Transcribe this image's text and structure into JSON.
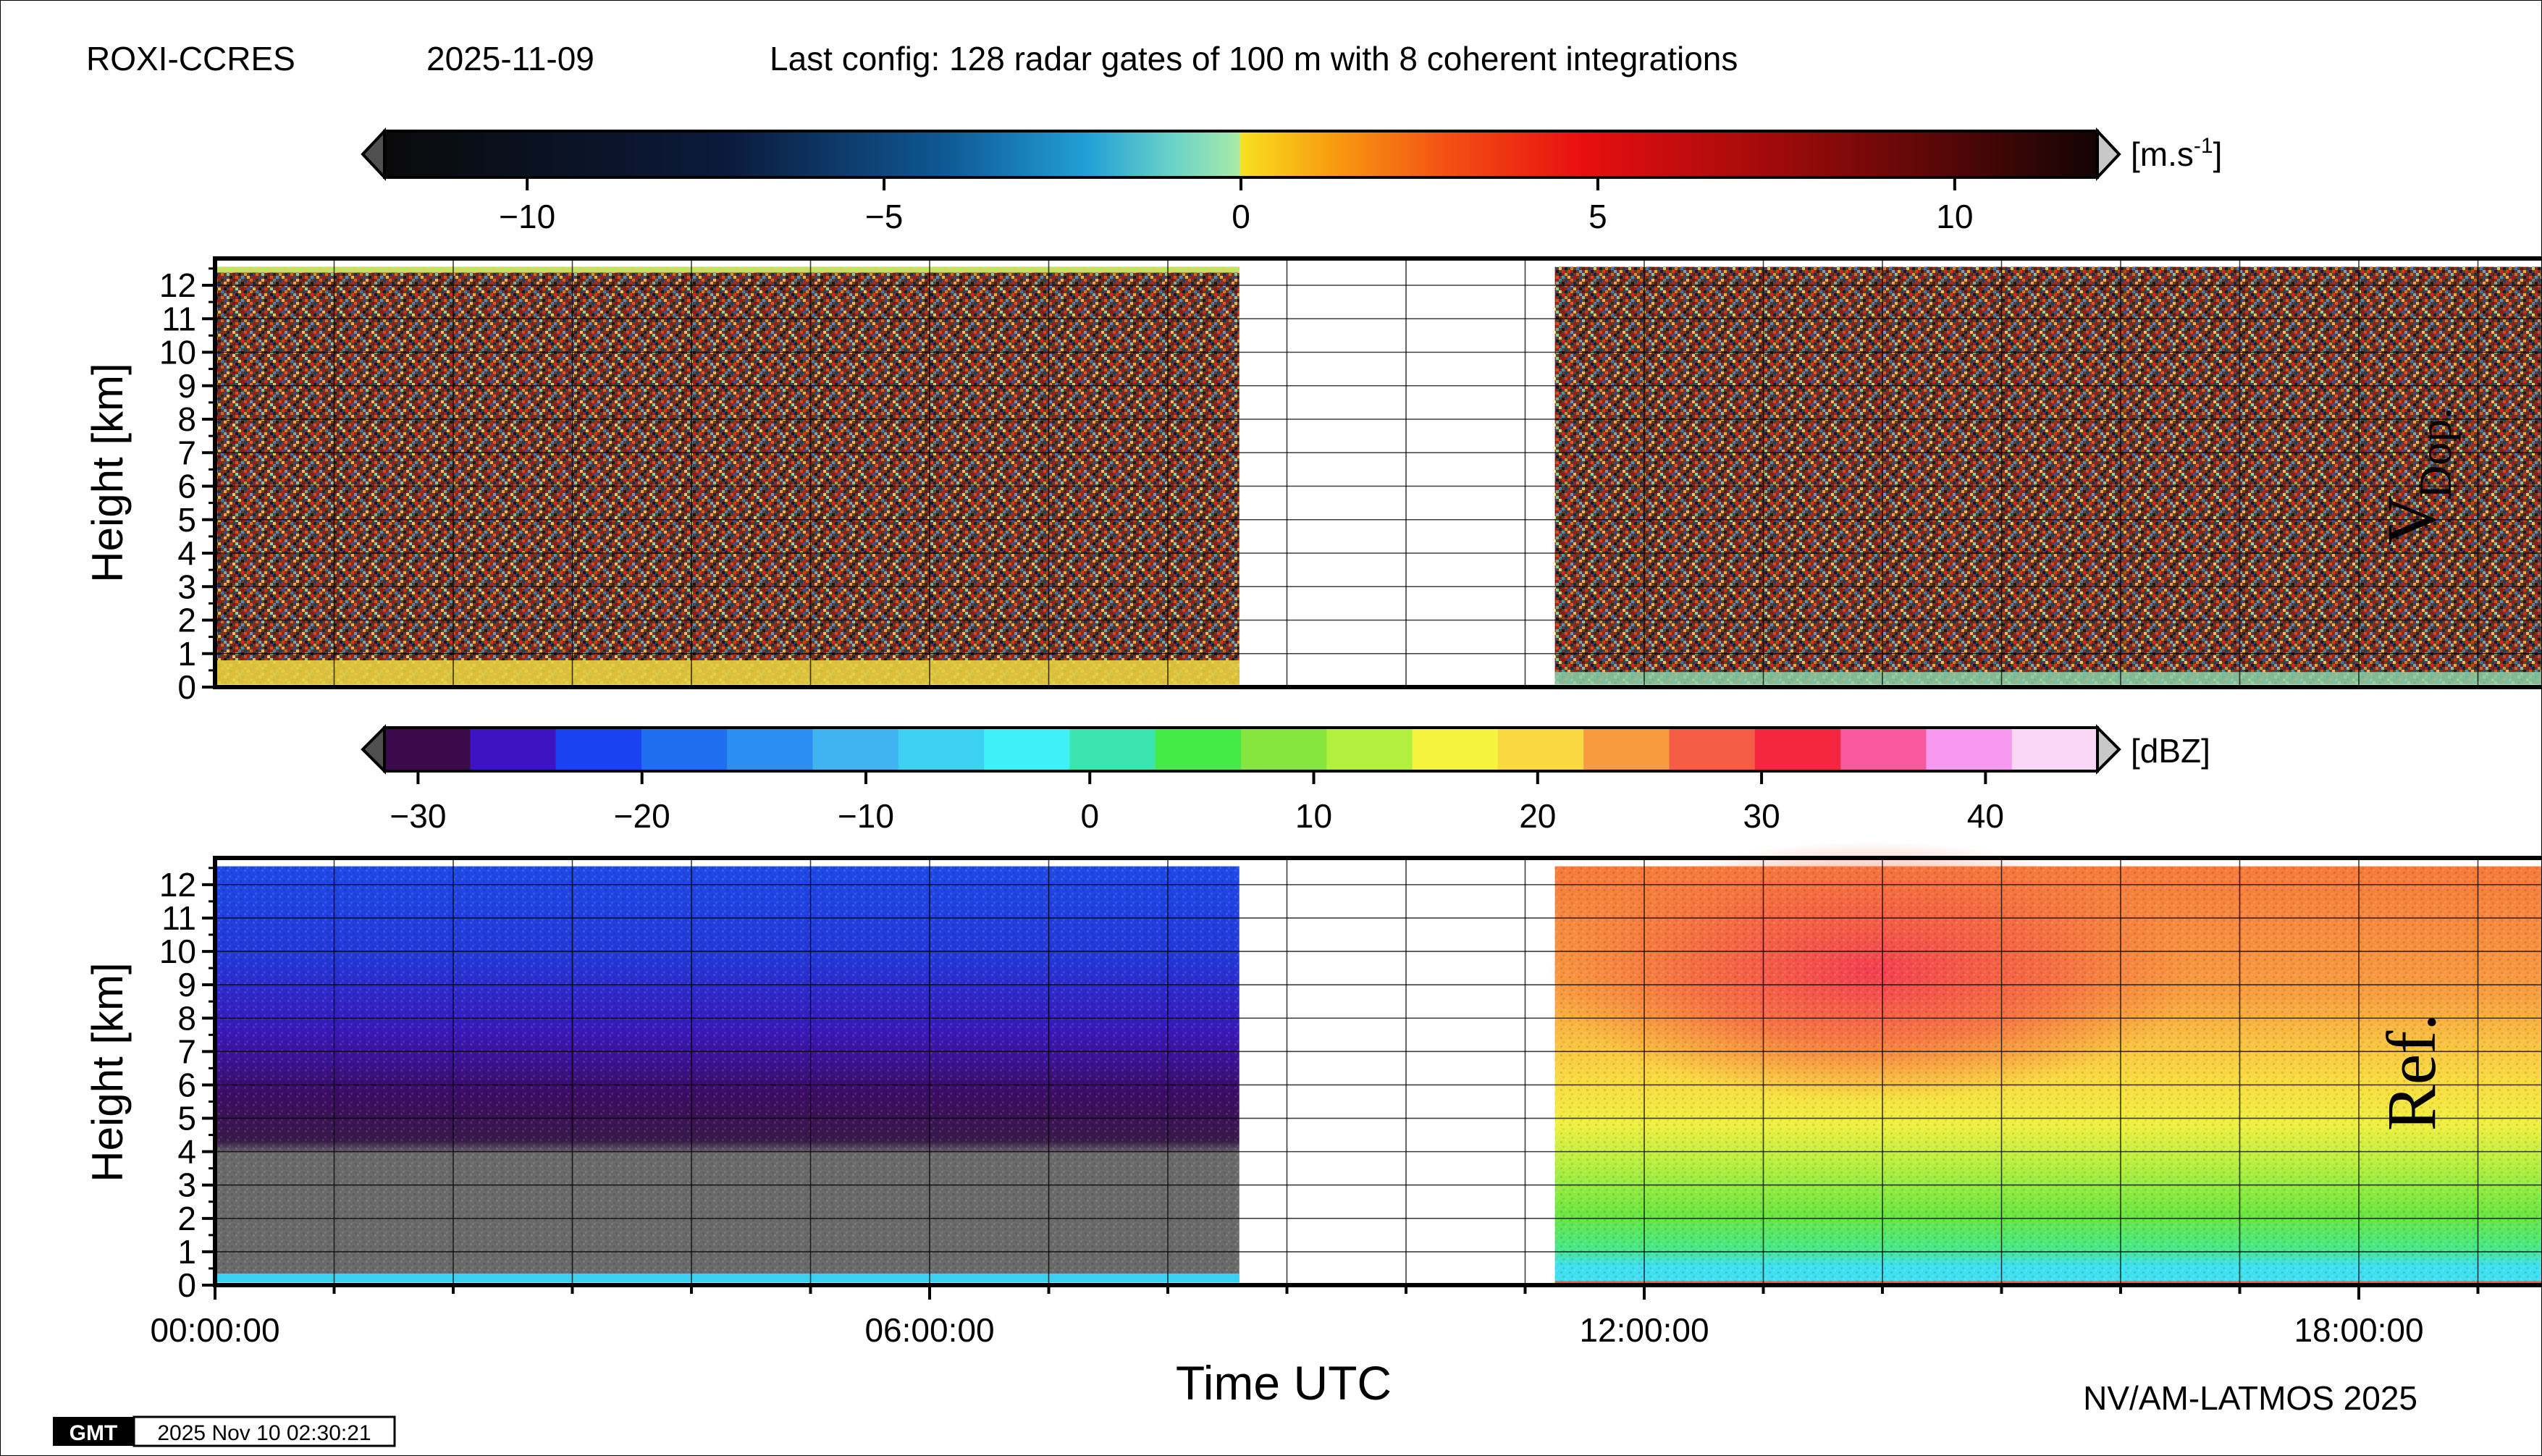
{
  "header": {
    "site": "ROXI-CCRES",
    "date": "2025-11-09",
    "config": "Last config: 128 radar gates of 100 m with 8 coherent integrations"
  },
  "footer": {
    "credit": "NV/AM-LATMOS 2025",
    "gmt_logo": "GMT",
    "timestamp": "2025 Nov 10 02:30:21"
  },
  "chart_data": [
    {
      "type": "heatmap",
      "panel_label_main": "V",
      "panel_label_sub": "Dop.",
      "ylabel": "Height [km]",
      "ylim": [
        0,
        12.8
      ],
      "yticks": [
        "0",
        "1",
        "2",
        "3",
        "4",
        "5",
        "6",
        "7",
        "8",
        "9",
        "10",
        "11",
        "12"
      ],
      "xlim_hours": [
        0,
        24
      ],
      "no_data_gap_hours": [
        8.6,
        11.25
      ],
      "colorbar": {
        "unit": "[m.s",
        "unit_sup": "-1",
        "unit_close": "]",
        "range": [
          -12,
          12
        ],
        "ticks": [
          -10,
          -5,
          0,
          5,
          10
        ],
        "tick_labels": [
          "−10",
          "−5",
          "0",
          "5",
          "10"
        ],
        "colormap": "polar-dark-blue-to-yellow-red-dark"
      },
      "description_values": {
        "upper_field": "noise (random velocities)",
        "near_surface_velocity_ms": 0
      }
    },
    {
      "type": "heatmap",
      "panel_label_main": "Ref.",
      "ylabel": "Height [km]",
      "ylim": [
        0,
        12.8
      ],
      "yticks": [
        "0",
        "1",
        "2",
        "3",
        "4",
        "5",
        "6",
        "7",
        "8",
        "9",
        "10",
        "11",
        "12"
      ],
      "xlim_hours": [
        0,
        24
      ],
      "no_data_gap_hours": [
        8.6,
        11.25
      ],
      "xticks": [
        "00:00:00",
        "06:00:00",
        "12:00:00",
        "18:00:00"
      ],
      "xlabel": "Time UTC",
      "colorbar": {
        "unit": "[dBZ]",
        "range": [
          -31.5,
          45
        ],
        "ticks": [
          -30,
          -20,
          -10,
          0,
          10,
          20,
          30,
          40
        ],
        "tick_labels": [
          "−30",
          "−20",
          "−10",
          "0",
          "10",
          "20",
          "30",
          "40"
        ],
        "colors": [
          "#3c0a4a",
          "#3e14c2",
          "#1a41f2",
          "#1e6ff0",
          "#2a8ff0",
          "#3fb4f0",
          "#3cd0f2",
          "#3ff0f8",
          "#3ce4b0",
          "#44ea48",
          "#86e63e",
          "#b2f040",
          "#f6f23e",
          "#fad842",
          "#f89a40",
          "#f45c44",
          "#f42640",
          "#f8589e",
          "#f898ee",
          "#f8d6f4"
        ]
      }
    }
  ]
}
